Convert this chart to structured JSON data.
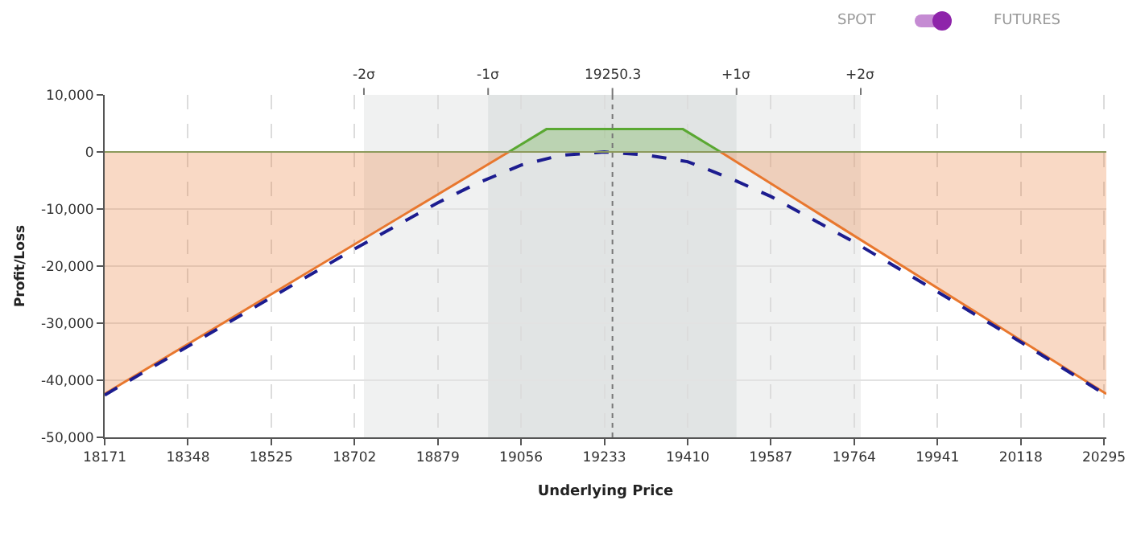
{
  "chart_data": {
    "type": "area",
    "xlabel": "Underlying Price",
    "ylabel": "Profit/Loss",
    "annotations": [
      "SPOT",
      "FUTURES"
    ],
    "series": [
      {
        "color": "#e8772e",
        "x": [
          18171,
          19030
        ],
        "values": [
          -42400,
          0
        ]
      },
      {
        "color": "#5aa832",
        "x": [
          19030,
          19110,
          19400,
          19480
        ],
        "values": [
          0,
          4000,
          4000,
          0
        ]
      },
      {
        "color": "#e8772e",
        "x": [
          19480,
          20300
        ],
        "values": [
          0,
          -42400
        ]
      },
      {
        "type": "line",
        "color": "#1c1c8f",
        "line_style": "dashed",
        "x": [
          18171,
          18525,
          18702,
          18879,
          18960,
          19056,
          19140,
          19233,
          19320,
          19410,
          19500,
          19587,
          19764,
          19941,
          20118,
          20300
        ],
        "values": [
          -42600,
          -25500,
          -17000,
          -8900,
          -5600,
          -2300,
          -600,
          0,
          -500,
          -1700,
          -4600,
          -7800,
          -15800,
          -24500,
          -33300,
          -42600
        ]
      }
    ],
    "xlim": [
      18171,
      20300
    ],
    "xticks": [
      18171,
      18348,
      18525,
      18702,
      18879,
      19056,
      19233,
      19410,
      19587,
      19764,
      19941,
      20118,
      20295
    ],
    "ylim": [
      -50000,
      10000
    ],
    "yticks": [
      {
        "value": -50000,
        "label": "-50,000"
      },
      {
        "value": -40000,
        "label": "-40,000"
      },
      {
        "value": -30000,
        "label": "-30,000"
      },
      {
        "value": -20000,
        "label": "-20,000"
      },
      {
        "value": -10000,
        "label": "-10,000"
      },
      0,
      {
        "value": 10000,
        "label": "10,000"
      }
    ],
    "bands": [
      {
        "axis": "x",
        "from": 18722,
        "to": 19778,
        "color": "#f0f1f1"
      },
      {
        "axis": "x",
        "from": 18986,
        "to": 19514,
        "color": "#e1e4e4"
      }
    ],
    "ref_lines": [
      {
        "axis": "y",
        "value": 0,
        "color": "#8c9a5c",
        "line_style": "solid"
      },
      {
        "axis": "x",
        "value": 19250.3,
        "label": "19250.3",
        "color": "#777777",
        "line_style": "dotted"
      },
      {
        "axis": "x",
        "value": 18722,
        "label": "-2σ",
        "color": "#777777"
      },
      {
        "axis": "x",
        "value": 18986,
        "label": "-1σ",
        "color": "#777777"
      },
      {
        "axis": "x",
        "value": 19514,
        "label": "+1σ",
        "color": "#777777"
      },
      {
        "axis": "x",
        "value": 19778,
        "label": "+2σ",
        "color": "#777777"
      }
    ],
    "grid": true
  }
}
